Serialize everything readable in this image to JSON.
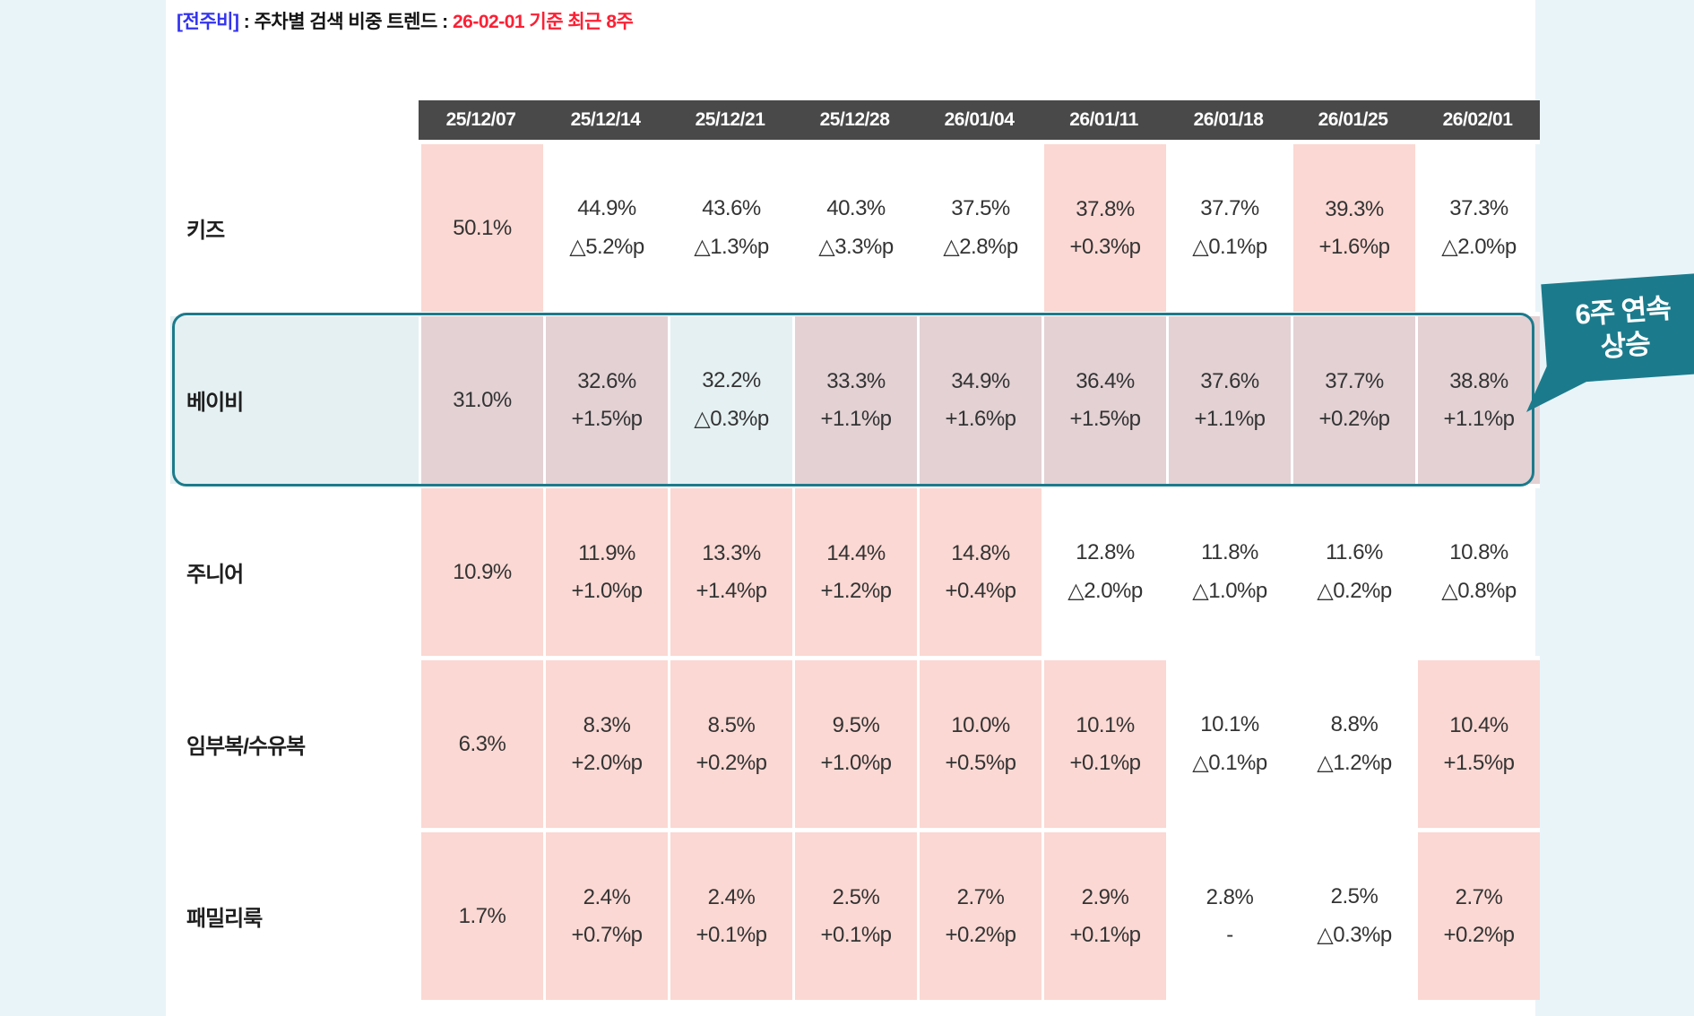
{
  "title": {
    "prefix": "[전주비]",
    "mid": " : 주차별 검색 비중 트렌드 : ",
    "period": "26-02-01 기준 최근 8주"
  },
  "callout": {
    "line1": "6주 연속",
    "line2": "상승"
  },
  "colors": {
    "increase_pink": "#fbd8d3",
    "highlight_row_blue": "#e5f0f2",
    "highlight_increase_mauve": "#e3d1d4",
    "highlight_border_teal": "#1b7b8c",
    "header_bg": "#494949",
    "title_blue": "#3333f0",
    "title_red": "#fb2034",
    "page_bg": "#e9f4f9"
  },
  "table": {
    "week_headers": [
      "25/12/07",
      "25/12/14",
      "25/12/21",
      "25/12/28",
      "26/01/04",
      "26/01/11",
      "26/01/18",
      "26/01/25",
      "26/02/01"
    ],
    "rows": [
      {
        "label": "키즈",
        "highlighted": false,
        "cells": [
          {
            "value": "50.1%",
            "delta": "",
            "pink": true
          },
          {
            "value": "44.9%",
            "delta": "△5.2%p",
            "pink": false
          },
          {
            "value": "43.6%",
            "delta": "△1.3%p",
            "pink": false
          },
          {
            "value": "40.3%",
            "delta": "△3.3%p",
            "pink": false
          },
          {
            "value": "37.5%",
            "delta": "△2.8%p",
            "pink": false
          },
          {
            "value": "37.8%",
            "delta": "+0.3%p",
            "pink": true
          },
          {
            "value": "37.7%",
            "delta": "△0.1%p",
            "pink": false
          },
          {
            "value": "39.3%",
            "delta": "+1.6%p",
            "pink": true
          },
          {
            "value": "37.3%",
            "delta": "△2.0%p",
            "pink": false
          }
        ]
      },
      {
        "label": "베이비",
        "highlighted": true,
        "cells": [
          {
            "value": "31.0%",
            "delta": "",
            "pink": true
          },
          {
            "value": "32.6%",
            "delta": "+1.5%p",
            "pink": true
          },
          {
            "value": "32.2%",
            "delta": "△0.3%p",
            "pink": false
          },
          {
            "value": "33.3%",
            "delta": "+1.1%p",
            "pink": true
          },
          {
            "value": "34.9%",
            "delta": "+1.6%p",
            "pink": true
          },
          {
            "value": "36.4%",
            "delta": "+1.5%p",
            "pink": true
          },
          {
            "value": "37.6%",
            "delta": "+1.1%p",
            "pink": true
          },
          {
            "value": "37.7%",
            "delta": "+0.2%p",
            "pink": true
          },
          {
            "value": "38.8%",
            "delta": "+1.1%p",
            "pink": true
          }
        ]
      },
      {
        "label": "주니어",
        "highlighted": false,
        "cells": [
          {
            "value": "10.9%",
            "delta": "",
            "pink": true
          },
          {
            "value": "11.9%",
            "delta": "+1.0%p",
            "pink": true
          },
          {
            "value": "13.3%",
            "delta": "+1.4%p",
            "pink": true
          },
          {
            "value": "14.4%",
            "delta": "+1.2%p",
            "pink": true
          },
          {
            "value": "14.8%",
            "delta": "+0.4%p",
            "pink": true
          },
          {
            "value": "12.8%",
            "delta": "△2.0%p",
            "pink": false
          },
          {
            "value": "11.8%",
            "delta": "△1.0%p",
            "pink": false
          },
          {
            "value": "11.6%",
            "delta": "△0.2%p",
            "pink": false
          },
          {
            "value": "10.8%",
            "delta": "△0.8%p",
            "pink": false
          }
        ]
      },
      {
        "label": "임부복/수유복",
        "highlighted": false,
        "cells": [
          {
            "value": "6.3%",
            "delta": "",
            "pink": true
          },
          {
            "value": "8.3%",
            "delta": "+2.0%p",
            "pink": true
          },
          {
            "value": "8.5%",
            "delta": "+0.2%p",
            "pink": true
          },
          {
            "value": "9.5%",
            "delta": "+1.0%p",
            "pink": true
          },
          {
            "value": "10.0%",
            "delta": "+0.5%p",
            "pink": true
          },
          {
            "value": "10.1%",
            "delta": "+0.1%p",
            "pink": true
          },
          {
            "value": "10.1%",
            "delta": "△0.1%p",
            "pink": false
          },
          {
            "value": "8.8%",
            "delta": "△1.2%p",
            "pink": false
          },
          {
            "value": "10.4%",
            "delta": "+1.5%p",
            "pink": true
          }
        ]
      },
      {
        "label": "패밀리룩",
        "highlighted": false,
        "cells": [
          {
            "value": "1.7%",
            "delta": "",
            "pink": true
          },
          {
            "value": "2.4%",
            "delta": "+0.7%p",
            "pink": true
          },
          {
            "value": "2.4%",
            "delta": "+0.1%p",
            "pink": true
          },
          {
            "value": "2.5%",
            "delta": "+0.1%p",
            "pink": true
          },
          {
            "value": "2.7%",
            "delta": "+0.2%p",
            "pink": true
          },
          {
            "value": "2.9%",
            "delta": "+0.1%p",
            "pink": true
          },
          {
            "value": "2.8%",
            "delta": "-",
            "pink": false
          },
          {
            "value": "2.5%",
            "delta": "△0.3%p",
            "pink": false
          },
          {
            "value": "2.7%",
            "delta": "+0.2%p",
            "pink": true
          }
        ]
      }
    ]
  },
  "chart_data": {
    "type": "table",
    "title": "[전주비] : 주차별 검색 비중 트렌드 : 26-02-01 기준 최근 8주",
    "categories": [
      "25/12/07",
      "25/12/14",
      "25/12/21",
      "25/12/28",
      "26/01/04",
      "26/01/11",
      "26/01/18",
      "26/01/25",
      "26/02/01"
    ],
    "unit": "% (search share), deltas in %p vs previous week; △ = decrease",
    "series": [
      {
        "name": "키즈",
        "values": [
          50.1,
          44.9,
          43.6,
          40.3,
          37.5,
          37.8,
          37.7,
          39.3,
          37.3
        ],
        "deltas": [
          null,
          -5.2,
          -1.3,
          -3.3,
          -2.8,
          0.3,
          -0.1,
          1.6,
          -2.0
        ]
      },
      {
        "name": "베이비",
        "values": [
          31.0,
          32.6,
          32.2,
          33.3,
          34.9,
          36.4,
          37.6,
          37.7,
          38.8
        ],
        "deltas": [
          null,
          1.5,
          -0.3,
          1.1,
          1.6,
          1.5,
          1.1,
          0.2,
          1.1
        ]
      },
      {
        "name": "주니어",
        "values": [
          10.9,
          11.9,
          13.3,
          14.4,
          14.8,
          12.8,
          11.8,
          11.6,
          10.8
        ],
        "deltas": [
          null,
          1.0,
          1.4,
          1.2,
          0.4,
          -2.0,
          -1.0,
          -0.2,
          -0.8
        ]
      },
      {
        "name": "임부복/수유복",
        "values": [
          6.3,
          8.3,
          8.5,
          9.5,
          10.0,
          10.1,
          10.1,
          8.8,
          10.4
        ],
        "deltas": [
          null,
          2.0,
          0.2,
          1.0,
          0.5,
          0.1,
          -0.1,
          -1.2,
          1.5
        ]
      },
      {
        "name": "패밀리룩",
        "values": [
          1.7,
          2.4,
          2.4,
          2.5,
          2.7,
          2.9,
          2.8,
          2.5,
          2.7
        ],
        "deltas": [
          null,
          0.7,
          0.1,
          0.1,
          0.2,
          0.1,
          null,
          -0.3,
          0.2
        ]
      }
    ],
    "annotations": [
      "6주 연속 상승 → 베이비 row highlighted with teal box"
    ],
    "legend_hint": "pink cell = week-over-week increase"
  }
}
